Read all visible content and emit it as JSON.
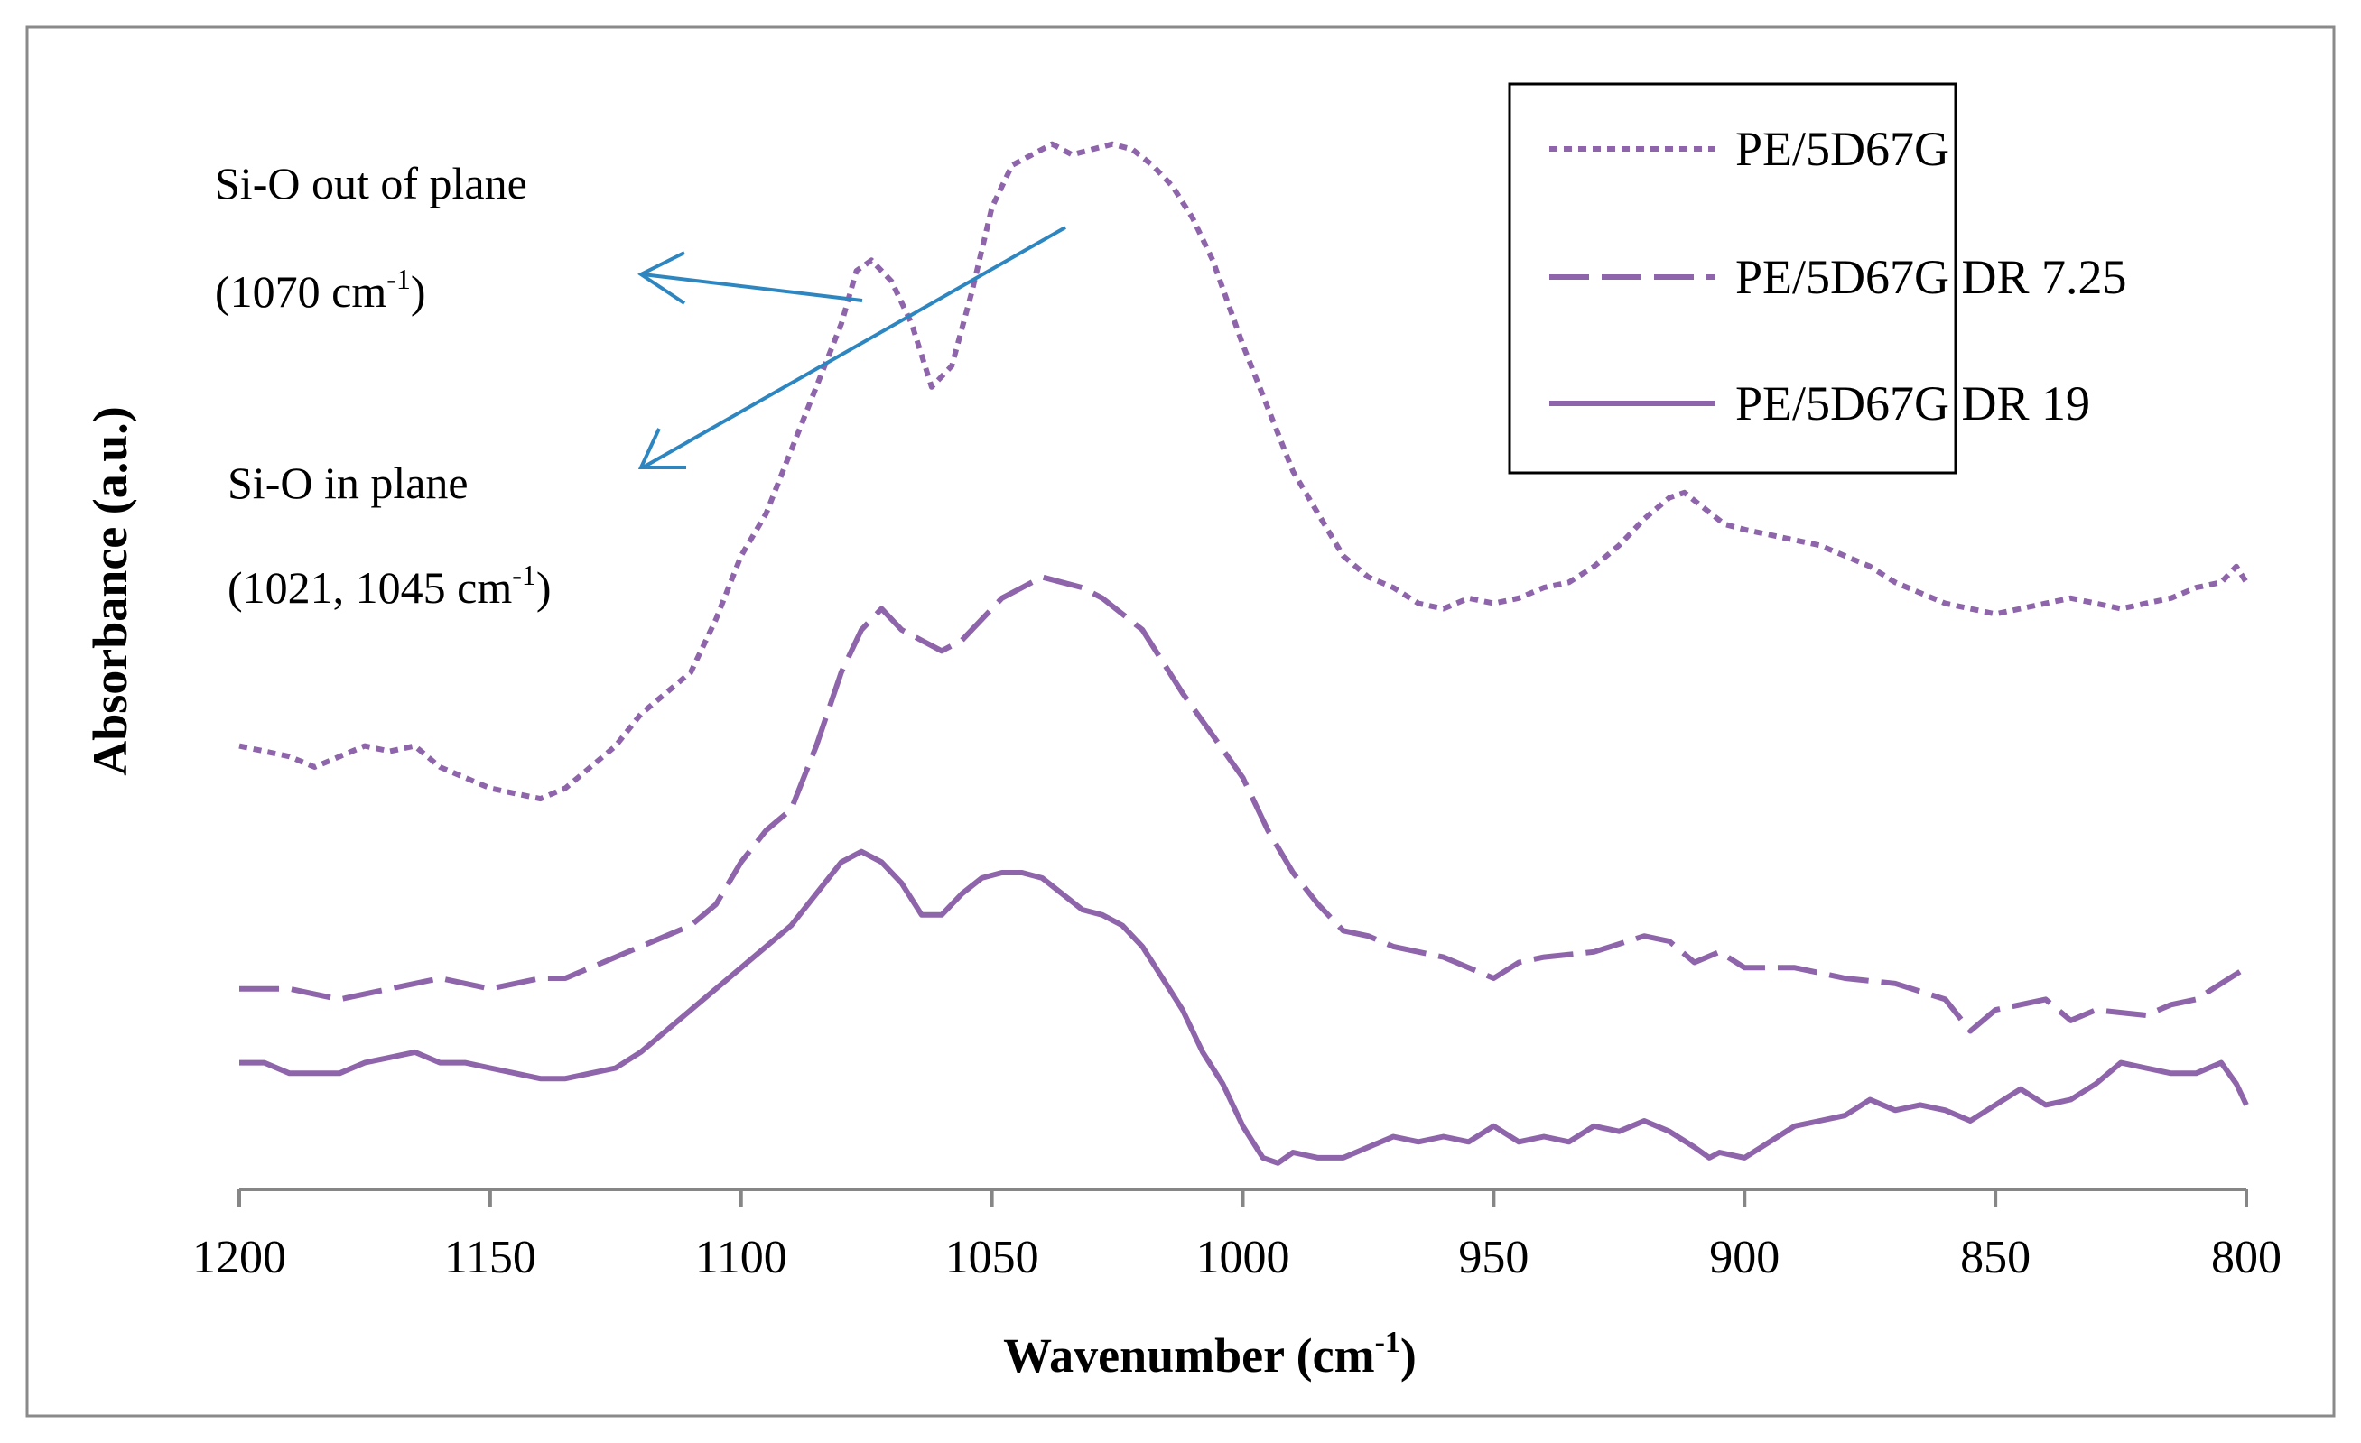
{
  "chart_data": {
    "type": "line",
    "xlabel": "Wavenumber (cm",
    "xlabel_sup": "-1",
    "xlabel_end": ")",
    "ylabel": "Absorbance (a.u.)",
    "x_reversed": true,
    "xlim": [
      1200,
      800
    ],
    "ylim": [
      0,
      1
    ],
    "ticks": [
      "1200",
      "1150",
      "1100",
      "1050",
      "1000",
      "950",
      "900",
      "850",
      "800"
    ],
    "tick_values": [
      1200,
      1150,
      1100,
      1050,
      1000,
      950,
      900,
      850,
      800
    ],
    "grid": false,
    "legend_position": "top-right",
    "series_color": "#8e64aa",
    "arrow_color": "#2e86c1",
    "series": [
      {
        "name": "PE/5D67G",
        "dash": "dotted",
        "x": [
          1200,
          1190,
          1185,
          1180,
          1175,
          1170,
          1165,
          1160,
          1155,
          1150,
          1145,
          1140,
          1135,
          1130,
          1125,
          1120,
          1115,
          1110,
          1105,
          1100,
          1095,
          1090,
          1085,
          1080,
          1077,
          1074,
          1072,
          1070,
          1066,
          1062,
          1058,
          1054,
          1050,
          1046,
          1042,
          1038,
          1034,
          1030,
          1026,
          1022,
          1018,
          1014,
          1010,
          1006,
          1000,
          995,
          990,
          985,
          980,
          975,
          970,
          965,
          960,
          955,
          950,
          945,
          940,
          935,
          930,
          925,
          920,
          915,
          912,
          908,
          904,
          900,
          895,
          890,
          885,
          880,
          875,
          870,
          865,
          860,
          855,
          850,
          845,
          840,
          835,
          830,
          825,
          820,
          815,
          810,
          805,
          802,
          800
        ],
        "y": [
          0.42,
          0.41,
          0.4,
          0.41,
          0.42,
          0.415,
          0.42,
          0.4,
          0.39,
          0.38,
          0.375,
          0.37,
          0.38,
          0.4,
          0.42,
          0.45,
          0.47,
          0.49,
          0.54,
          0.6,
          0.64,
          0.7,
          0.76,
          0.82,
          0.87,
          0.88,
          0.87,
          0.86,
          0.82,
          0.76,
          0.78,
          0.85,
          0.93,
          0.97,
          0.98,
          0.99,
          0.98,
          0.985,
          0.99,
          0.985,
          0.97,
          0.95,
          0.92,
          0.88,
          0.8,
          0.74,
          0.68,
          0.64,
          0.6,
          0.58,
          0.57,
          0.555,
          0.55,
          0.56,
          0.555,
          0.56,
          0.57,
          0.575,
          0.59,
          0.61,
          0.635,
          0.655,
          0.66,
          0.645,
          0.63,
          0.625,
          0.62,
          0.615,
          0.61,
          0.6,
          0.59,
          0.575,
          0.565,
          0.555,
          0.55,
          0.545,
          0.55,
          0.555,
          0.56,
          0.555,
          0.55,
          0.555,
          0.56,
          0.57,
          0.575,
          0.59,
          0.575
        ]
      },
      {
        "name": "PE/5D67G DR 7.25",
        "dash": "dashed",
        "x": [
          1200,
          1190,
          1180,
          1170,
          1160,
          1150,
          1140,
          1135,
          1130,
          1120,
          1115,
          1110,
          1105,
          1100,
          1095,
          1090,
          1085,
          1080,
          1076,
          1072,
          1068,
          1064,
          1060,
          1056,
          1052,
          1048,
          1044,
          1040,
          1036,
          1032,
          1028,
          1024,
          1020,
          1016,
          1012,
          1006,
          1000,
          995,
          990,
          985,
          980,
          975,
          970,
          960,
          950,
          945,
          940,
          930,
          920,
          915,
          910,
          905,
          900,
          890,
          880,
          870,
          860,
          855,
          850,
          840,
          835,
          830,
          820,
          815,
          810,
          805,
          800
        ],
        "y": [
          0.19,
          0.19,
          0.18,
          0.19,
          0.2,
          0.19,
          0.2,
          0.2,
          0.21,
          0.23,
          0.24,
          0.25,
          0.27,
          0.31,
          0.34,
          0.36,
          0.42,
          0.49,
          0.53,
          0.55,
          0.53,
          0.52,
          0.51,
          0.52,
          0.54,
          0.56,
          0.57,
          0.58,
          0.575,
          0.57,
          0.56,
          0.545,
          0.53,
          0.5,
          0.47,
          0.43,
          0.39,
          0.34,
          0.3,
          0.27,
          0.245,
          0.24,
          0.23,
          0.22,
          0.2,
          0.215,
          0.22,
          0.225,
          0.24,
          0.235,
          0.215,
          0.225,
          0.21,
          0.21,
          0.2,
          0.195,
          0.18,
          0.15,
          0.17,
          0.18,
          0.16,
          0.17,
          0.165,
          0.175,
          0.18,
          0.195,
          0.21
        ]
      },
      {
        "name": "PE/5D67G DR 19",
        "dash": "solid",
        "x": [
          1200,
          1195,
          1190,
          1185,
          1180,
          1175,
          1170,
          1165,
          1160,
          1155,
          1150,
          1145,
          1140,
          1135,
          1130,
          1125,
          1120,
          1115,
          1110,
          1105,
          1100,
          1095,
          1090,
          1085,
          1080,
          1076,
          1072,
          1068,
          1064,
          1060,
          1056,
          1052,
          1048,
          1044,
          1040,
          1036,
          1032,
          1028,
          1024,
          1020,
          1016,
          1012,
          1008,
          1004,
          1000,
          996,
          993,
          990,
          985,
          980,
          975,
          970,
          965,
          960,
          955,
          950,
          945,
          940,
          935,
          930,
          925,
          920,
          915,
          910,
          907,
          905,
          900,
          895,
          890,
          885,
          880,
          875,
          870,
          865,
          860,
          855,
          850,
          845,
          840,
          835,
          830,
          825,
          820,
          815,
          810,
          805,
          802,
          800
        ],
        "y": [
          0.12,
          0.12,
          0.11,
          0.11,
          0.11,
          0.12,
          0.125,
          0.13,
          0.12,
          0.12,
          0.115,
          0.11,
          0.105,
          0.105,
          0.11,
          0.115,
          0.13,
          0.15,
          0.17,
          0.19,
          0.21,
          0.23,
          0.25,
          0.28,
          0.31,
          0.32,
          0.31,
          0.29,
          0.26,
          0.26,
          0.28,
          0.295,
          0.3,
          0.3,
          0.295,
          0.28,
          0.265,
          0.26,
          0.25,
          0.23,
          0.2,
          0.17,
          0.13,
          0.1,
          0.06,
          0.03,
          0.025,
          0.035,
          0.03,
          0.03,
          0.04,
          0.05,
          0.045,
          0.05,
          0.045,
          0.06,
          0.045,
          0.05,
          0.045,
          0.06,
          0.055,
          0.065,
          0.055,
          0.04,
          0.03,
          0.035,
          0.03,
          0.045,
          0.06,
          0.065,
          0.07,
          0.085,
          0.075,
          0.08,
          0.075,
          0.065,
          0.08,
          0.095,
          0.08,
          0.085,
          0.1,
          0.12,
          0.115,
          0.11,
          0.11,
          0.12,
          0.1,
          0.08
        ]
      }
    ]
  },
  "annotations": {
    "out_of_plane_line1": "Si-O out of plane",
    "out_of_plane_line2": "(1070 cm",
    "out_of_plane_sup": "-1",
    "out_of_plane_end": ")",
    "in_plane_line1": "Si-O in plane",
    "in_plane_line2": "(1021, 1045 cm",
    "in_plane_sup": "-1",
    "in_plane_end": ")"
  }
}
